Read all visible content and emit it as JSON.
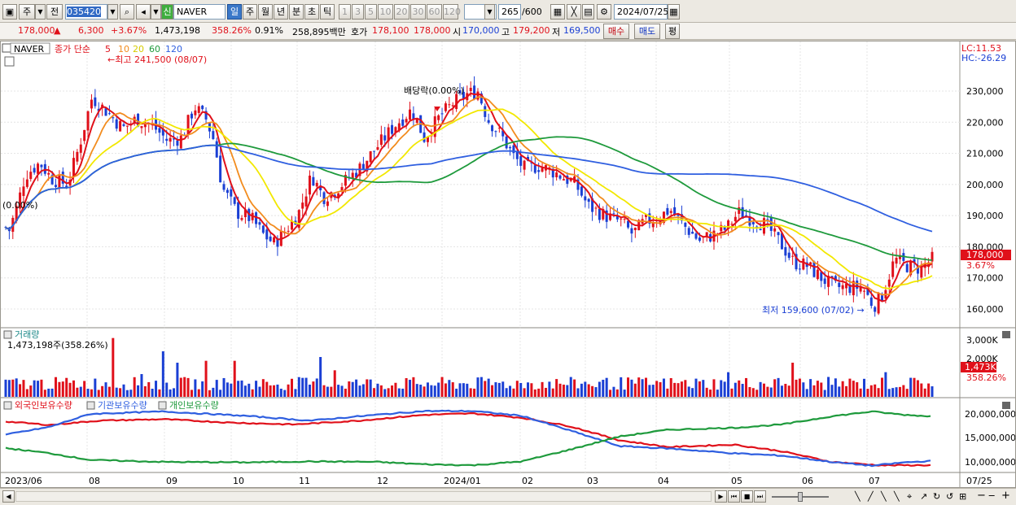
{
  "toolbar": {
    "period_type": "주",
    "prev_label": "전",
    "stock_code": "035420",
    "new_badge": "신",
    "stock_name": "NAVER",
    "periods": [
      "일",
      "주",
      "월",
      "년",
      "분",
      "초",
      "틱"
    ],
    "active_period": "일",
    "intervals": [
      "1",
      "3",
      "5",
      "10",
      "20",
      "30",
      "60",
      "120"
    ],
    "count": "265",
    "count_total": "/600",
    "date": "2024/07/25"
  },
  "infobar": {
    "price": "178,000",
    "change_arrow": "▲",
    "change": "6,300",
    "change_pct": "+3.67%",
    "volume": "1,473,198",
    "volume_ratio": "358.26%",
    "turnover": "0.91%",
    "amount": "258,895백만",
    "ask_label": "호가",
    "ask": "178,100",
    "bid": "178,000",
    "open_label": "시",
    "open": "170,000",
    "high_label": "고",
    "high": "179,200",
    "low_label": "저",
    "low": "169,500",
    "buy_label": "매수",
    "sell_label": "매도",
    "eval_label": "평"
  },
  "price_panel": {
    "name_tag": "NAVER",
    "ma_label": "종가 단순",
    "ma_periods": [
      "5",
      "10",
      "20",
      "60",
      "120"
    ],
    "ma_colors": [
      "#e0101a",
      "#f28c1e",
      "#f2e800",
      "#1e9a3c",
      "#2f5fe0"
    ],
    "high_note": "←최고 241,500 (08/07)",
    "low_note": "최저 159,600 (07/02) →",
    "dividend_note": "배당락(0.00%)",
    "left_note": "(0.00%)",
    "lc": "LC:11.53",
    "hc": "HC:-26.29",
    "current_price": "178,000",
    "current_pct": "3.67%",
    "price_ticks": [
      "230,000",
      "220,000",
      "210,000",
      "200,000",
      "190,000",
      "180,000",
      "170,000",
      "160,000"
    ]
  },
  "volume_panel": {
    "title": "거래량",
    "value_label": "1,473,198주(358.26%)",
    "ticks": [
      "3,000K",
      "2,000K"
    ],
    "current": "1,473K",
    "current_pct": "358.26%"
  },
  "holdings_panel": {
    "legend": [
      "외국인보유수량",
      "기관보유수량",
      "개인보유수량"
    ],
    "colors": [
      "#e0101a",
      "#2f5fe0",
      "#1e9a3c"
    ],
    "ticks": [
      "20,000,000",
      "15,000,000",
      "10,000,000"
    ]
  },
  "x_axis": [
    "2023/06",
    "08",
    "09",
    "10",
    "11",
    "12",
    "2024/01",
    "02",
    "03",
    "04",
    "05",
    "06",
    "07",
    "07/25"
  ],
  "colors": {
    "up": "#e0101a",
    "down": "#1a3fd4"
  }
}
